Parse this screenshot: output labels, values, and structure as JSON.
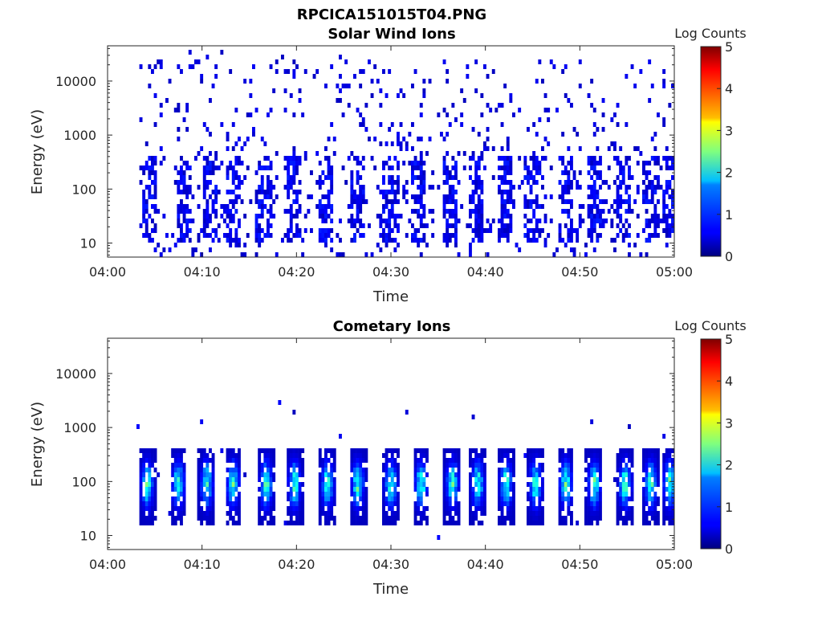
{
  "figure": {
    "title": "RPCICA151015T04.PNG"
  },
  "chart_data": [
    {
      "type": "heatmap",
      "title": "Solar Wind Ions",
      "xlabel": "Time",
      "ylabel": "Energy (eV)",
      "x_ticks": [
        "04:00",
        "04:10",
        "04:20",
        "04:30",
        "04:40",
        "04:50",
        "05:00"
      ],
      "xlim_minutes": [
        0,
        60
      ],
      "y_ticks": [
        "10",
        "100",
        "1000",
        "10000"
      ],
      "y_tick_values": [
        10,
        100,
        1000,
        10000
      ],
      "ylim": [
        5.5,
        45000
      ],
      "y_scale": "log",
      "colorbar": {
        "label": "Log Counts",
        "ticks": [
          "0",
          "1",
          "2",
          "3",
          "4",
          "5"
        ],
        "range": [
          0,
          5
        ],
        "colormap": "jet"
      },
      "description_of_data": "Sparse low counts (log counts ~0-0.5) from about 04:03 to 05:00; dense vertical bursts at energies 10-400 eV roughly every 2.5 minutes, scattered single counts up to ~30000 eV.",
      "burst_centers_minutes": [
        4.5,
        8.2,
        10.8,
        13.3,
        16.5,
        19.8,
        23.2,
        26.5,
        30.0,
        33.0,
        36.2,
        39.0,
        42.0,
        45.0,
        48.5,
        51.5,
        54.5,
        57.5,
        59.5
      ],
      "max_log_counts": 0.5
    },
    {
      "type": "heatmap",
      "title": "Cometary Ions",
      "xlabel": "Time",
      "ylabel": "Energy (eV)",
      "x_ticks": [
        "04:00",
        "04:10",
        "04:20",
        "04:30",
        "04:40",
        "04:50",
        "05:00"
      ],
      "xlim_minutes": [
        0,
        60
      ],
      "y_ticks": [
        "10",
        "100",
        "1000",
        "10000"
      ],
      "y_tick_values": [
        10,
        100,
        1000,
        10000
      ],
      "ylim": [
        5.5,
        45000
      ],
      "y_scale": "log",
      "colorbar": {
        "label": "Log Counts",
        "ticks": [
          "0",
          "1",
          "2",
          "3",
          "4",
          "5"
        ],
        "range": [
          0,
          5
        ],
        "colormap": "jet"
      },
      "description_of_data": "Periodic bursts of cometary ions between ~15 eV and ~500 eV, peak log counts ~2 near 60-150 eV, repeating roughly every 2.7 minutes from 04:03 to 05:00.",
      "burst_centers_minutes": [
        4.2,
        7.5,
        10.5,
        13.3,
        16.8,
        19.8,
        23.3,
        26.5,
        30.0,
        33.2,
        36.5,
        39.2,
        42.2,
        45.3,
        48.5,
        51.5,
        54.8,
        57.5,
        59.5
      ],
      "max_log_counts": 2.1
    }
  ]
}
